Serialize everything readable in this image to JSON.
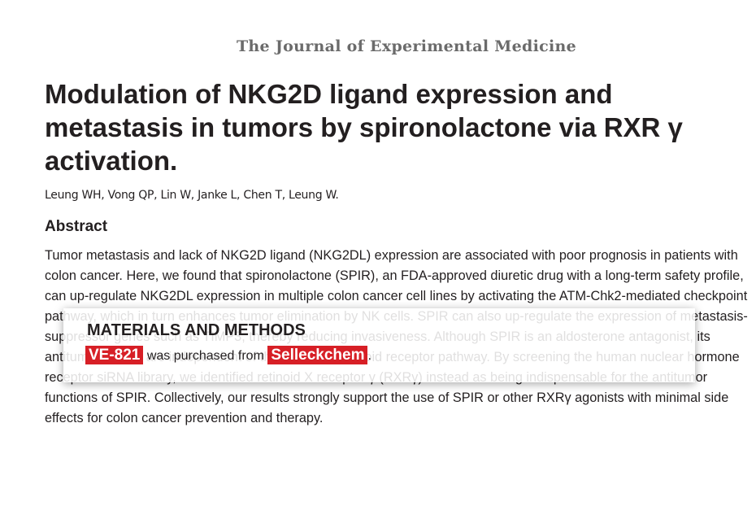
{
  "journal": "The Journal of Experimental Medicine",
  "article": {
    "title": "Modulation of NKG2D ligand expression and metastasis in tumors by spironolactone via RXR γ activation.",
    "authors": "Leung WH, Vong QP, Lin W, Janke L, Chen T, Leung W.",
    "abstract_heading": "Abstract",
    "abstract_text": "Tumor metastasis and lack of NKG2D ligand (NKG2DL) expression are associated with poor prognosis in patients with colon cancer. Here, we found that spironolactone (SPIR), an FDA-approved diuretic drug with a long-term safety profile, can up-regulate NKG2DL expression in multiple colon cancer cell lines by activating the ATM-Chk2-mediated checkpoint pathway, which in turn enhances tumor elimination by NK cells. SPIR can also up-regulate the expression of metastasis-suppressor genes such as TIMP3, thereby reducing invasiveness. Although SPIR is an aldosterone antagonist, its antitumor effects are independent of the mineralocorticoid receptor pathway. By screening the human nuclear hormone receptor siRNA library, we identified retinoid X receptor γ (RXRγ) instead as being indispensable for the antitumor functions of SPIR. Collectively, our results strongly support the use of SPIR or other RXRγ agonists with minimal side effects for colon cancer prevention and therapy."
  },
  "overlay": {
    "heading": "MATERIALS AND METHODS",
    "product": "VE-821",
    "middle_text": "was purchased from",
    "supplier": "Selleckchem",
    "end_text": ".",
    "accent_color": "#d71f26"
  }
}
